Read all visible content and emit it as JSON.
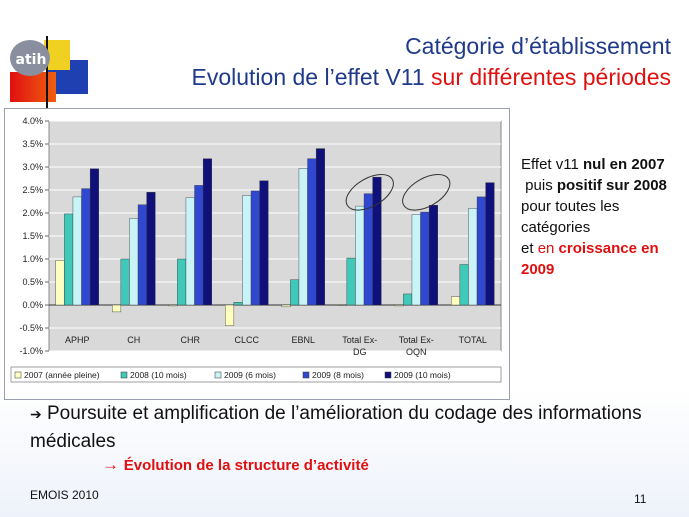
{
  "slide": {
    "title_line1": "Catégorie d’établissement",
    "title_line2_main": "Evolution de l’effet V11 ",
    "title_line2_red": "sur différentes périodes",
    "logo_text": "atih",
    "side_text": {
      "p1": "Effet v11 ",
      "p1_bold": "nul en 2007",
      "p2_pre": "puis ",
      "p2_bold": "positif sur 2008",
      "p2_post": " pour toutes les catégories",
      "p3_pre": "et ",
      "p3_red": "en ",
      "p3_red_bold": "croissance en 2009"
    },
    "bullet_arrow": "➔",
    "bullet": " Poursuite et amplification de l’amélioration du codage des informations médicales",
    "sub_bullet_arrow": "→ ",
    "sub_bullet": "Évolution de la structure d’activité",
    "footer": "EMOIS 2010",
    "page_number": "11"
  },
  "colors": {
    "title_blue": "#1f3a8a",
    "accent_red": "#e01010",
    "series": [
      "#ffffc0",
      "#40c8b8",
      "#c8f4f8",
      "#3048d0",
      "#10107a"
    ]
  },
  "chart_data": {
    "type": "bar",
    "categories": [
      "APHP",
      "CH",
      "CHR",
      "CLCC",
      "EBNL",
      "Total Ex-DG",
      "Total Ex-OQN",
      "TOTAL"
    ],
    "series": [
      {
        "name": "2007 (année pleine)",
        "values": [
          0.97,
          -0.15,
          -0.02,
          -0.45,
          -0.04,
          0.0,
          -0.02,
          0.18
        ]
      },
      {
        "name": "2008 (10 mois)",
        "values": [
          1.98,
          1.0,
          1.0,
          0.06,
          0.55,
          1.02,
          0.24,
          0.88
        ]
      },
      {
        "name": "2009 (6 mois)",
        "values": [
          2.35,
          1.88,
          2.33,
          2.38,
          2.97,
          2.15,
          1.97,
          2.1
        ]
      },
      {
        "name": "2009 (8 mois)",
        "values": [
          2.53,
          2.18,
          2.6,
          2.48,
          3.18,
          2.42,
          2.02,
          2.35
        ]
      },
      {
        "name": "2009 (10 mois)",
        "values": [
          2.96,
          2.45,
          3.18,
          2.7,
          3.4,
          2.78,
          2.17,
          2.66
        ]
      }
    ],
    "yticks": [
      "4.0%",
      "3.5%",
      "3.0%",
      "2.5%",
      "2.0%",
      "1.5%",
      "1.0%",
      "0.5%",
      "0.0%",
      "-0.5%",
      "-1.0%"
    ],
    "ylim": [
      -1.0,
      4.0
    ],
    "grid": true,
    "legend": "bottom",
    "title": "",
    "xlabel": "",
    "ylabel": ""
  }
}
